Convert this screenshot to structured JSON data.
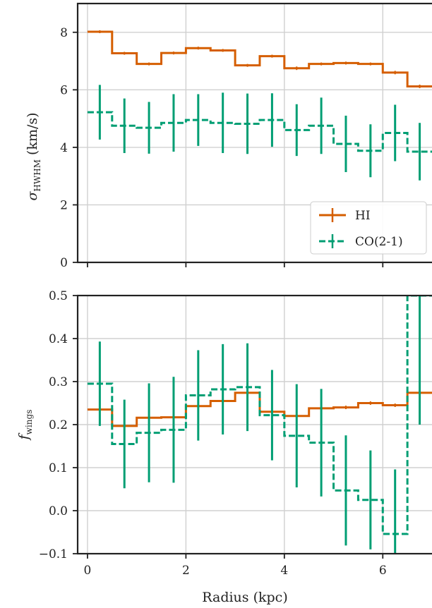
{
  "chart_data": [
    {
      "type": "line",
      "panel": "top",
      "ylabel": "σ_HWHM (km/s)",
      "ylabel_main": "σ",
      "ylabel_sub": "HWHM",
      "ylabel_unit": " (km/s)",
      "xlim": [
        -0.2,
        7.0
      ],
      "ylim": [
        0,
        9
      ],
      "xticks": [
        0,
        2,
        4,
        6
      ],
      "yticks": [
        0,
        2,
        4,
        6,
        8
      ],
      "ytick_labels": [
        "0",
        "2",
        "4",
        "6",
        "8"
      ],
      "grid": true,
      "legend": "lower-right",
      "bin_width": 0.5,
      "series": [
        {
          "name": "HI",
          "color": "#d55e00",
          "style": "solid-step",
          "x": [
            0.25,
            0.75,
            1.25,
            1.75,
            2.25,
            2.75,
            3.25,
            3.75,
            4.25,
            4.75,
            5.25,
            5.75,
            6.25,
            6.75
          ],
          "y": [
            8.02,
            7.27,
            6.9,
            7.28,
            7.45,
            7.37,
            6.85,
            7.17,
            6.75,
            6.9,
            6.93,
            6.9,
            6.6,
            6.12
          ],
          "err": [
            0.05,
            0.05,
            0.05,
            0.05,
            0.05,
            0.05,
            0.05,
            0.05,
            0.06,
            0.05,
            0.05,
            0.05,
            0.06,
            0.06
          ]
        },
        {
          "name": "CO(2-1)",
          "color": "#009e73",
          "style": "dashed-step",
          "x": [
            0.25,
            0.75,
            1.25,
            1.75,
            2.25,
            2.75,
            3.25,
            3.75,
            4.25,
            4.75,
            5.25,
            5.75,
            6.25,
            6.75
          ],
          "y": [
            5.22,
            4.75,
            4.68,
            4.85,
            4.95,
            4.85,
            4.82,
            4.95,
            4.6,
            4.75,
            4.12,
            3.88,
            4.5,
            3.85
          ],
          "err": [
            0.95,
            0.95,
            0.9,
            1.0,
            0.9,
            1.05,
            1.05,
            0.93,
            0.9,
            0.98,
            0.98,
            0.92,
            0.98,
            1.0
          ]
        }
      ]
    },
    {
      "type": "line",
      "panel": "bottom",
      "xlabel": "Radius (kpc)",
      "ylabel": "f_wings",
      "ylabel_main": "f",
      "ylabel_sub": "wings",
      "xlim": [
        -0.2,
        7.0
      ],
      "ylim": [
        -0.1,
        0.5
      ],
      "xticks": [
        0,
        2,
        4,
        6
      ],
      "xtick_labels": [
        "0",
        "2",
        "4",
        "6"
      ],
      "yticks": [
        -0.1,
        0.0,
        0.1,
        0.2,
        0.3,
        0.4,
        0.5
      ],
      "ytick_labels": [
        "−0.1",
        "0.0",
        "0.1",
        "0.2",
        "0.3",
        "0.4",
        "0.5"
      ],
      "grid": true,
      "bin_width": 0.5,
      "series": [
        {
          "name": "HI",
          "color": "#d55e00",
          "style": "solid-step",
          "x": [
            0.25,
            0.75,
            1.25,
            1.75,
            2.25,
            2.75,
            3.25,
            3.75,
            4.25,
            4.75,
            5.25,
            5.75,
            6.25,
            6.75
          ],
          "y": [
            0.235,
            0.197,
            0.216,
            0.217,
            0.243,
            0.255,
            0.274,
            0.23,
            0.22,
            0.238,
            0.24,
            0.25,
            0.245,
            0.274
          ],
          "err": [
            0.004,
            0.004,
            0.004,
            0.004,
            0.004,
            0.004,
            0.004,
            0.004,
            0.004,
            0.004,
            0.004,
            0.004,
            0.004,
            0.004
          ]
        },
        {
          "name": "CO(2-1)",
          "color": "#009e73",
          "style": "dashed-step",
          "x": [
            0.25,
            0.75,
            1.25,
            1.75,
            2.25,
            2.75,
            3.25,
            3.75,
            4.25,
            4.75,
            5.25,
            5.75,
            6.25,
            6.75
          ],
          "y": [
            0.295,
            0.155,
            0.181,
            0.188,
            0.268,
            0.282,
            0.287,
            0.222,
            0.174,
            0.158,
            0.047,
            0.025,
            -0.054,
            0.5
          ],
          "err": [
            0.098,
            0.103,
            0.115,
            0.123,
            0.105,
            0.105,
            0.102,
            0.105,
            0.12,
            0.125,
            0.128,
            0.115,
            0.15,
            0.3
          ]
        }
      ]
    }
  ],
  "legend": {
    "items": [
      {
        "label": "HI",
        "color": "#d55e00"
      },
      {
        "label": "CO(2-1)",
        "color": "#009e73"
      }
    ]
  },
  "xlabel": "Radius (kpc)"
}
